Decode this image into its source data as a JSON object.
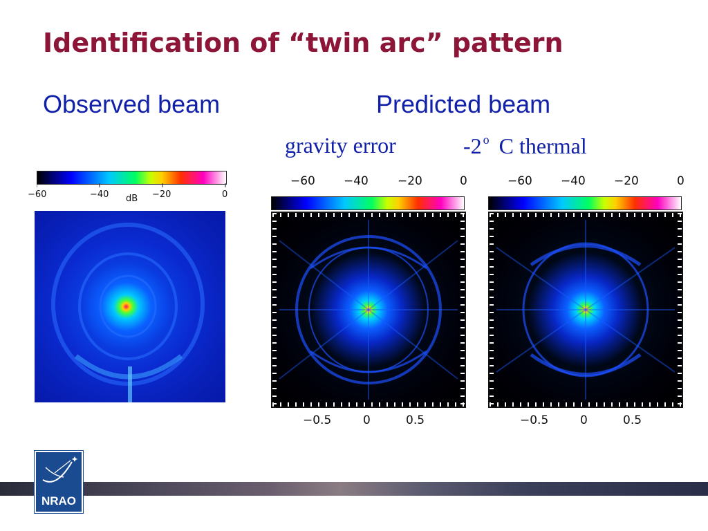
{
  "title": "Identification of “twin arc” pattern",
  "observed_heading": "Observed beam",
  "predicted_heading": "Predicted beam",
  "captions": {
    "gravity": "gravity error",
    "thermal_prefix": "-2",
    "thermal_degree": "o",
    "thermal_suffix": "C thermal"
  },
  "observed_colorbar": {
    "ticks": [
      "−60",
      "−40",
      "−20",
      "0"
    ],
    "unit": "dB"
  },
  "predicted_colorbar": {
    "ticks": [
      "−60",
      "−40",
      "−20",
      "0"
    ]
  },
  "x_axis_ticks": [
    "−0.5",
    "0",
    "0.5"
  ],
  "logo_text": "NRAO",
  "colors": {
    "title": "#8c1538",
    "headings": "#1020a8",
    "logo_bg": "#1a4a90"
  }
}
